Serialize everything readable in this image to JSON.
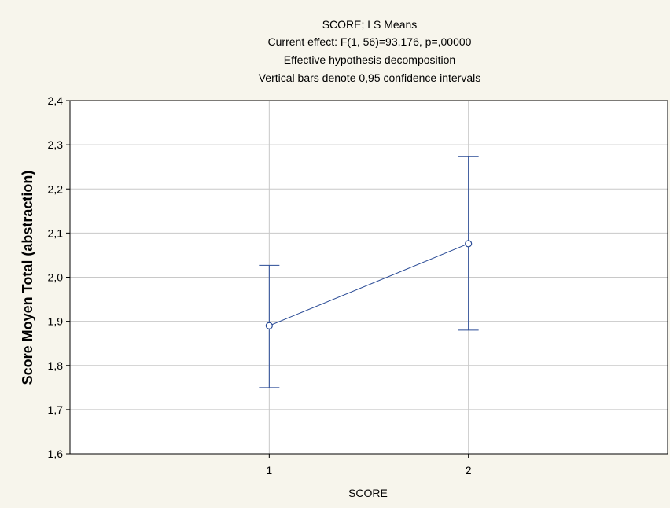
{
  "chart_data": {
    "type": "line",
    "title_lines": [
      "SCORE; LS Means",
      "Current effect: F(1, 56)=93,176, p=,00000",
      "Effective hypothesis decomposition",
      "Vertical bars denote 0,95 confidence intervals"
    ],
    "xlabel": "SCORE",
    "ylabel": "Score Moyen Total (abstraction)",
    "categories": [
      "1",
      "2"
    ],
    "x_range": [
      0,
      3
    ],
    "ylim": [
      1.6,
      2.4
    ],
    "y_ticks": [
      1.6,
      1.7,
      1.8,
      1.9,
      2.0,
      2.1,
      2.2,
      2.3,
      2.4
    ],
    "y_tick_labels": [
      "1,6",
      "1,7",
      "1,8",
      "1,9",
      "2,0",
      "2,1",
      "2,2",
      "2,3",
      "2,4"
    ],
    "grid": true,
    "series": [
      {
        "values": [
          1.89,
          2.076
        ],
        "ci_lower": [
          1.75,
          1.88
        ],
        "ci_upper": [
          2.027,
          2.273
        ]
      }
    ],
    "colors": {
      "background": "#f7f5ec",
      "plot_background": "#ffffff",
      "series": "#2a4b96",
      "grid": "#c8c8c8"
    }
  }
}
